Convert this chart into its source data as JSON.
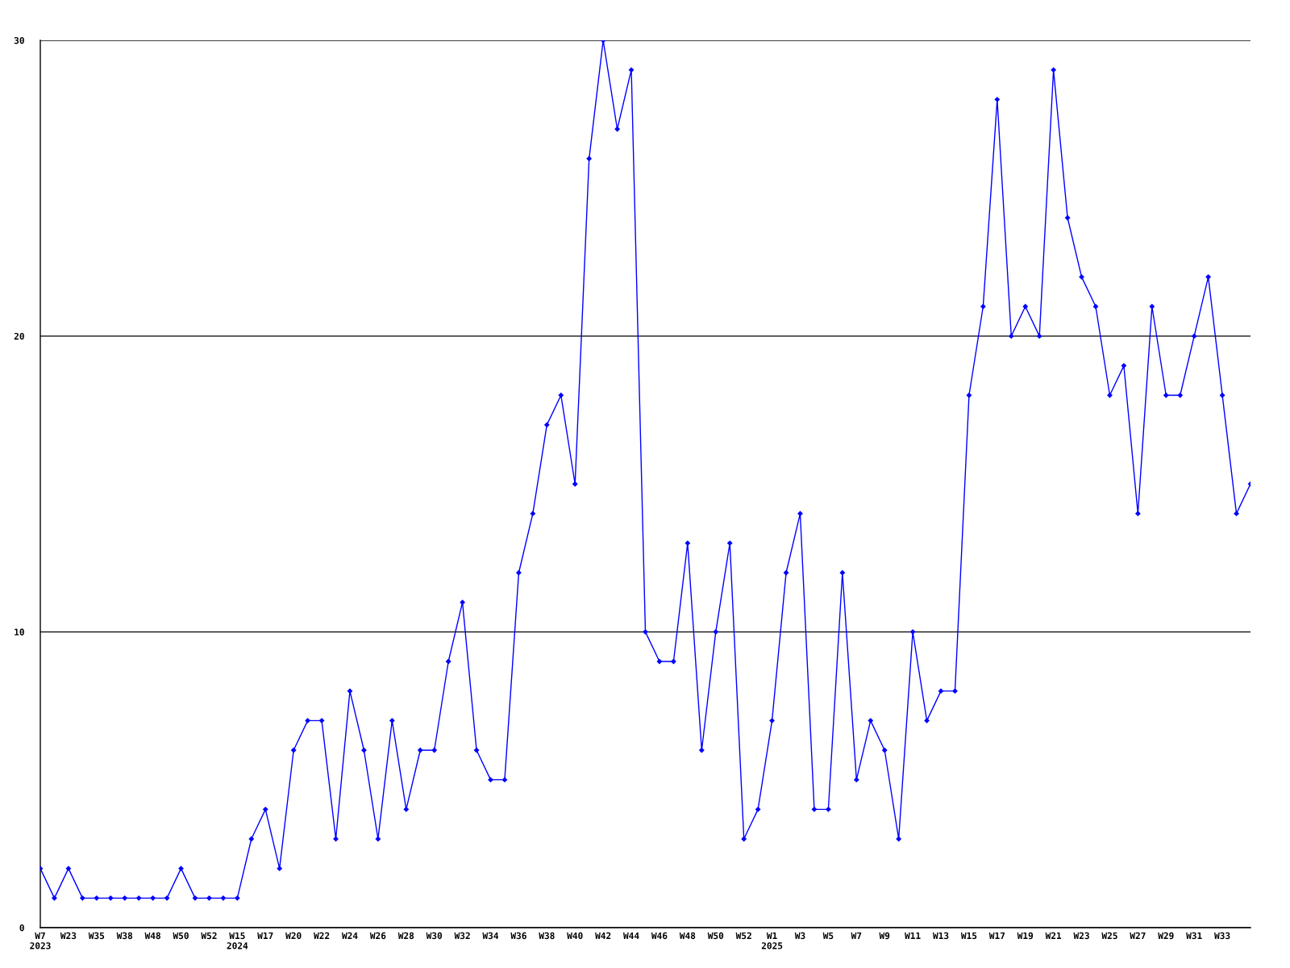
{
  "chart_data": {
    "type": "line",
    "color": "#0000ff",
    "marker": "diamond",
    "line_style": "solid",
    "grid": "y",
    "categories": [
      "W7\n2023",
      null,
      "W23",
      null,
      "W35",
      null,
      "W38",
      null,
      "W48",
      null,
      "W50",
      null,
      "W52",
      null,
      "W15\n2024",
      null,
      "W17",
      null,
      "W20",
      null,
      "W22",
      null,
      "W24",
      null,
      "W26",
      null,
      "W28",
      null,
      "W30",
      null,
      "W32",
      null,
      "W34",
      null,
      "W36",
      null,
      "W38",
      null,
      "W40",
      null,
      "W42",
      null,
      "W44",
      null,
      "W46",
      null,
      "W48",
      null,
      "W50",
      null,
      "W52",
      null,
      "W1\n2025",
      null,
      "W3",
      null,
      "W5",
      null,
      "W7",
      null,
      "W9",
      null,
      "W11",
      null,
      "W13",
      null,
      "W15",
      null,
      "W17",
      null,
      "W19",
      null,
      "W21",
      null,
      "W23",
      null,
      "W25",
      null,
      "W27",
      null,
      "W29",
      null,
      "W31",
      null,
      "W33",
      null,
      null
    ],
    "values": [
      2,
      1,
      2,
      1,
      1,
      1,
      1,
      1,
      1,
      1,
      2,
      1,
      1,
      1,
      1,
      3,
      4,
      2,
      6,
      7,
      7,
      3,
      8,
      6,
      3,
      7,
      4,
      6,
      6,
      9,
      11,
      6,
      5,
      5,
      12,
      14,
      17,
      18,
      15,
      26,
      30,
      27,
      29,
      10,
      9,
      9,
      13,
      6,
      10,
      13,
      3,
      4,
      7,
      12,
      14,
      4,
      4,
      12,
      5,
      7,
      6,
      3,
      10,
      7,
      8,
      8,
      18,
      21,
      28,
      20,
      21,
      20,
      29,
      24,
      22,
      21,
      18,
      19,
      14,
      21,
      18,
      18,
      20,
      22,
      18,
      14,
      15
    ],
    "ylim": [
      0,
      30
    ],
    "yticks": [
      0,
      10,
      20,
      30
    ]
  }
}
